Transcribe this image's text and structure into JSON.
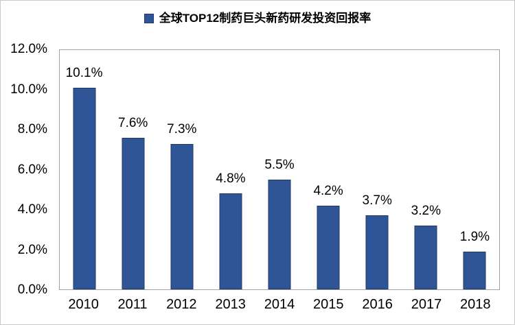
{
  "colors": {
    "bar_fill": "#2F5597",
    "bar_border": "#1F3864",
    "plot_border": "#A0A0A0",
    "figure_border": "#C9C9C9",
    "text_color": "#000000"
  },
  "legend": {
    "label": "全球TOP12制药巨头新药研发投资回报率"
  },
  "chart_data": {
    "type": "bar",
    "title": "全球TOP12制药巨头新药研发投资回报率",
    "categories": [
      "2010",
      "2011",
      "2012",
      "2013",
      "2014",
      "2015",
      "2016",
      "2017",
      "2018"
    ],
    "values": [
      10.1,
      7.6,
      7.3,
      4.8,
      5.5,
      4.2,
      3.7,
      3.2,
      1.9
    ],
    "data_labels": [
      "10.1%",
      "7.6%",
      "7.3%",
      "4.8%",
      "5.5%",
      "4.2%",
      "3.7%",
      "3.2%",
      "1.9%"
    ],
    "xlabel": "",
    "ylabel": "",
    "ylim": [
      0,
      12
    ],
    "ytick_step": 2,
    "ytick_labels": [
      "0.0%",
      "2.0%",
      "4.0%",
      "6.0%",
      "8.0%",
      "10.0%",
      "12.0%"
    ],
    "grid": false,
    "legend_position": "top"
  }
}
